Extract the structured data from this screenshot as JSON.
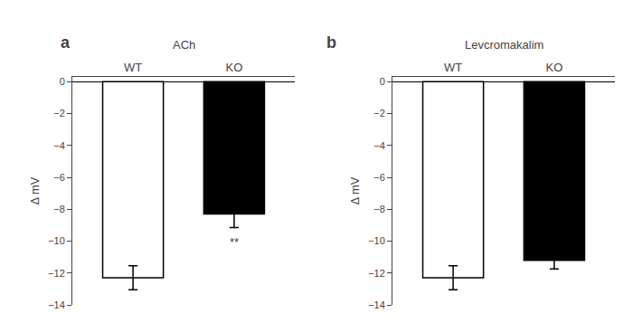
{
  "chart_data": [
    {
      "type": "bar",
      "panel_label": "a",
      "title": "ACh",
      "categories": [
        "WT",
        "KO"
      ],
      "values": [
        -12.3,
        -8.3
      ],
      "errors": [
        0.75,
        0.85
      ],
      "colors": [
        "#ffffff",
        "#000000"
      ],
      "ylabel": "Δ mV",
      "ylim": [
        -14,
        0.3
      ],
      "yticks": [
        0,
        -2,
        -4,
        -6,
        -8,
        -10,
        -12,
        -14
      ],
      "grid": false,
      "annotations": [
        {
          "text": "**",
          "category": "KO"
        }
      ]
    },
    {
      "type": "bar",
      "panel_label": "b",
      "title": "Levcromakalim",
      "categories": [
        "WT",
        "KO"
      ],
      "values": [
        -12.3,
        -11.2
      ],
      "errors": [
        0.75,
        0.55
      ],
      "colors": [
        "#ffffff",
        "#000000"
      ],
      "ylabel": "Δ mV",
      "ylim": [
        -14,
        0.3
      ],
      "yticks": [
        0,
        -2,
        -4,
        -6,
        -8,
        -10,
        -12,
        -14
      ],
      "grid": false
    }
  ]
}
